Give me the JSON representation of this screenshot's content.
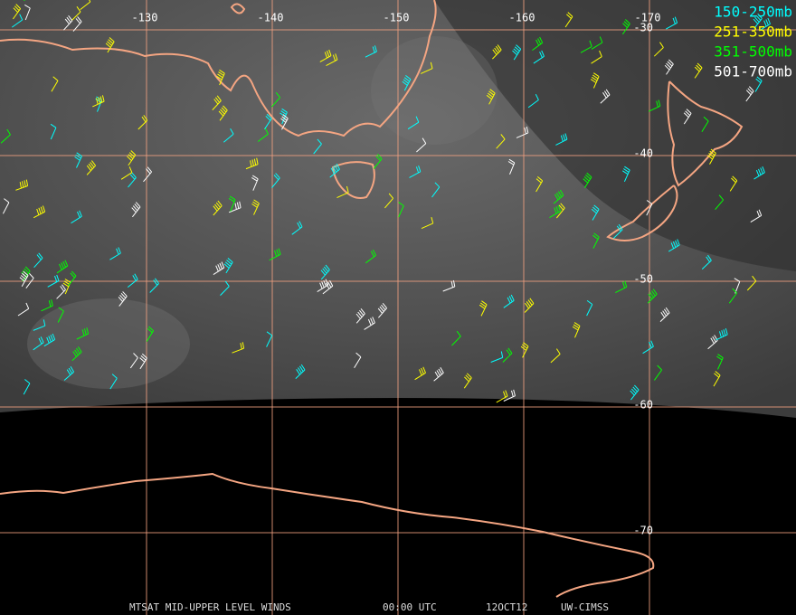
{
  "map": {
    "longitude_labels": [
      "-130",
      "-140",
      "-150",
      "-160",
      "-170"
    ],
    "latitude_labels": [
      "-30",
      "-40",
      "-50",
      "-60",
      "-70"
    ],
    "legend": [
      {
        "name": "150-250mb",
        "color": "#00ffff"
      },
      {
        "name": "251-350mb",
        "color": "#ffff00"
      },
      {
        "name": "351-500mb",
        "color": "#00ff00"
      },
      {
        "name": "501-700mb",
        "color": "#ffffff"
      }
    ],
    "footer": [
      "MTSAT MID-UPPER LEVEL WINDS",
      "00:00 UTC",
      "12OCT12",
      "UW-CIMSS"
    ]
  }
}
